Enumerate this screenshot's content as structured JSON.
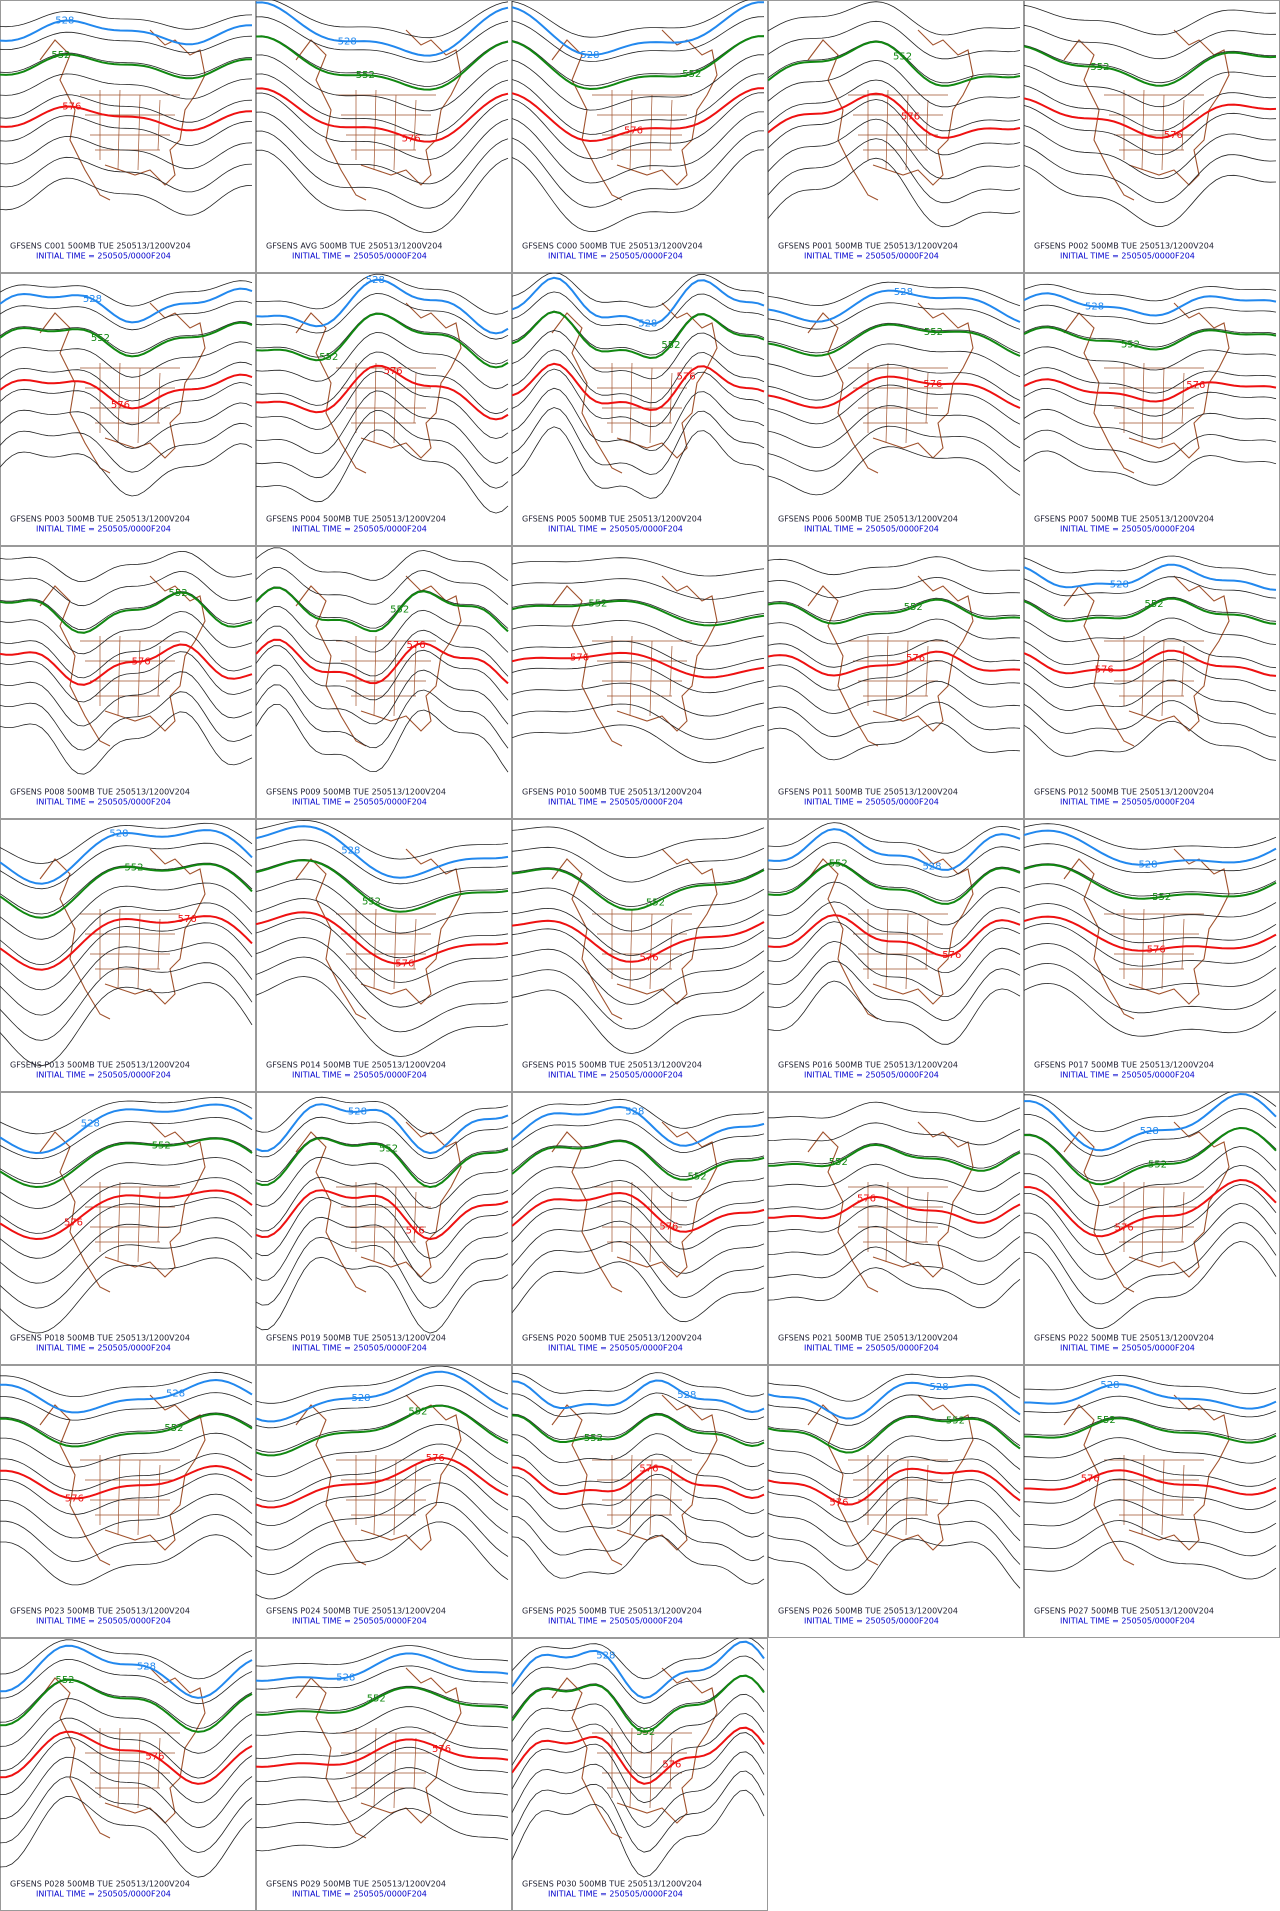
{
  "panels": [
    {
      "title": "GFSENS C001 500MB TUE 250513/1200V204",
      "init": "INITIAL TIME = 250505/0000F204",
      "labels": [
        {
          "text": "528",
          "color": "#2288ee"
        },
        {
          "text": "552",
          "color": "#118811"
        },
        {
          "text": "576",
          "color": "#ee1111"
        }
      ]
    },
    {
      "title": "GFSENS AVG 500MB TUE 250513/1200V204",
      "init": "INITIAL TIME = 250505/0000F204",
      "labels": [
        {
          "text": "528",
          "color": "#2288ee"
        },
        {
          "text": "552",
          "color": "#118811"
        },
        {
          "text": "576",
          "color": "#ee1111"
        }
      ]
    },
    {
      "title": "GFSENS C000 500MB TUE 250513/1200V204",
      "init": "INITIAL TIME = 250505/0000F204",
      "labels": [
        {
          "text": "528",
          "color": "#2288ee"
        },
        {
          "text": "552",
          "color": "#118811"
        },
        {
          "text": "576",
          "color": "#ee1111"
        }
      ]
    },
    {
      "title": "GFSENS P001 500MB TUE 250513/1200V204",
      "init": "INITIAL TIME = 250505/0000F204",
      "labels": [
        {
          "text": "552",
          "color": "#118811"
        },
        {
          "text": "576",
          "color": "#ee1111"
        }
      ]
    },
    {
      "title": "GFSENS P002 500MB TUE 250513/1200V204",
      "init": "INITIAL TIME = 250505/0000F204",
      "labels": [
        {
          "text": "552",
          "color": "#118811"
        },
        {
          "text": "576",
          "color": "#ee1111"
        }
      ]
    },
    {
      "title": "GFSENS P003 500MB TUE 250513/1200V204",
      "init": "INITIAL TIME = 250505/0000F204",
      "labels": [
        {
          "text": "528",
          "color": "#2288ee"
        },
        {
          "text": "552",
          "color": "#118811"
        },
        {
          "text": "576",
          "color": "#ee1111"
        }
      ]
    },
    {
      "title": "GFSENS P004 500MB TUE 250513/1200V204",
      "init": "INITIAL TIME = 250505/0000F204",
      "labels": [
        {
          "text": "528",
          "color": "#2288ee"
        },
        {
          "text": "552",
          "color": "#118811"
        },
        {
          "text": "576",
          "color": "#ee1111"
        }
      ]
    },
    {
      "title": "GFSENS P005 500MB TUE 250513/1200V204",
      "init": "INITIAL TIME = 250505/0000F204",
      "labels": [
        {
          "text": "528",
          "color": "#2288ee"
        },
        {
          "text": "552",
          "color": "#118811"
        },
        {
          "text": "576",
          "color": "#ee1111"
        }
      ]
    },
    {
      "title": "GFSENS P006 500MB TUE 250513/1200V204",
      "init": "INITIAL TIME = 250505/0000F204",
      "labels": [
        {
          "text": "528",
          "color": "#2288ee"
        },
        {
          "text": "552",
          "color": "#118811"
        },
        {
          "text": "576",
          "color": "#ee1111"
        }
      ]
    },
    {
      "title": "GFSENS P007 500MB TUE 250513/1200V204",
      "init": "INITIAL TIME = 250505/0000F204",
      "labels": [
        {
          "text": "528",
          "color": "#2288ee"
        },
        {
          "text": "552",
          "color": "#118811"
        },
        {
          "text": "576",
          "color": "#ee1111"
        }
      ]
    },
    {
      "title": "GFSENS P008 500MB TUE 250513/1200V204",
      "init": "INITIAL TIME = 250505/0000F204",
      "labels": [
        {
          "text": "552",
          "color": "#118811"
        },
        {
          "text": "576",
          "color": "#ee1111"
        }
      ]
    },
    {
      "title": "GFSENS P009 500MB TUE 250513/1200V204",
      "init": "INITIAL TIME = 250505/0000F204",
      "labels": [
        {
          "text": "552",
          "color": "#118811"
        },
        {
          "text": "576",
          "color": "#ee1111"
        }
      ]
    },
    {
      "title": "GFSENS P010 500MB TUE 250513/1200V204",
      "init": "INITIAL TIME = 250505/0000F204",
      "labels": [
        {
          "text": "552",
          "color": "#118811"
        },
        {
          "text": "576",
          "color": "#ee1111"
        }
      ]
    },
    {
      "title": "GFSENS P011 500MB TUE 250513/1200V204",
      "init": "INITIAL TIME = 250505/0000F204",
      "labels": [
        {
          "text": "552",
          "color": "#118811"
        },
        {
          "text": "576",
          "color": "#ee1111"
        }
      ]
    },
    {
      "title": "GFSENS P012 500MB TUE 250513/1200V204",
      "init": "INITIAL TIME = 250505/0000F204",
      "labels": [
        {
          "text": "528",
          "color": "#2288ee"
        },
        {
          "text": "552",
          "color": "#118811"
        },
        {
          "text": "576",
          "color": "#ee1111"
        }
      ]
    },
    {
      "title": "GFSENS P013 500MB TUE 250513/1200V204",
      "init": "INITIAL TIME = 250505/0000F204",
      "labels": [
        {
          "text": "528",
          "color": "#2288ee"
        },
        {
          "text": "552",
          "color": "#118811"
        },
        {
          "text": "576",
          "color": "#ee1111"
        }
      ]
    },
    {
      "title": "GFSENS P014 500MB TUE 250513/1200V204",
      "init": "INITIAL TIME = 250505/0000F204",
      "labels": [
        {
          "text": "528",
          "color": "#2288ee"
        },
        {
          "text": "552",
          "color": "#118811"
        },
        {
          "text": "576",
          "color": "#ee1111"
        }
      ]
    },
    {
      "title": "GFSENS P015 500MB TUE 250513/1200V204",
      "init": "INITIAL TIME = 250505/0000F204",
      "labels": [
        {
          "text": "552",
          "color": "#118811"
        },
        {
          "text": "576",
          "color": "#ee1111"
        }
      ]
    },
    {
      "title": "GFSENS P016 500MB TUE 250513/1200V204",
      "init": "INITIAL TIME = 250505/0000F204",
      "labels": [
        {
          "text": "528",
          "color": "#2288ee"
        },
        {
          "text": "552",
          "color": "#118811"
        },
        {
          "text": "576",
          "color": "#ee1111"
        }
      ]
    },
    {
      "title": "GFSENS P017 500MB TUE 250513/1200V204",
      "init": "INITIAL TIME = 250505/0000F204",
      "labels": [
        {
          "text": "528",
          "color": "#2288ee"
        },
        {
          "text": "552",
          "color": "#118811"
        },
        {
          "text": "576",
          "color": "#ee1111"
        }
      ]
    },
    {
      "title": "GFSENS P018 500MB TUE 250513/1200V204",
      "init": "INITIAL TIME = 250505/0000F204",
      "labels": [
        {
          "text": "528",
          "color": "#2288ee"
        },
        {
          "text": "552",
          "color": "#118811"
        },
        {
          "text": "576",
          "color": "#ee1111"
        }
      ]
    },
    {
      "title": "GFSENS P019 500MB TUE 250513/1200V204",
      "init": "INITIAL TIME = 250505/0000F204",
      "labels": [
        {
          "text": "528",
          "color": "#2288ee"
        },
        {
          "text": "552",
          "color": "#118811"
        },
        {
          "text": "576",
          "color": "#ee1111"
        }
      ]
    },
    {
      "title": "GFSENS P020 500MB TUE 250513/1200V204",
      "init": "INITIAL TIME = 250505/0000F204",
      "labels": [
        {
          "text": "528",
          "color": "#2288ee"
        },
        {
          "text": "552",
          "color": "#118811"
        },
        {
          "text": "576",
          "color": "#ee1111"
        }
      ]
    },
    {
      "title": "GFSENS P021 500MB TUE 250513/1200V204",
      "init": "INITIAL TIME = 250505/0000F204",
      "labels": [
        {
          "text": "552",
          "color": "#118811"
        },
        {
          "text": "576",
          "color": "#ee1111"
        }
      ]
    },
    {
      "title": "GFSENS P022 500MB TUE 250513/1200V204",
      "init": "INITIAL TIME = 250505/0000F204",
      "labels": [
        {
          "text": "528",
          "color": "#2288ee"
        },
        {
          "text": "552",
          "color": "#118811"
        },
        {
          "text": "576",
          "color": "#ee1111"
        }
      ]
    },
    {
      "title": "GFSENS P023 500MB TUE 250513/1200V204",
      "init": "INITIAL TIME = 250505/0000F204",
      "labels": [
        {
          "text": "528",
          "color": "#2288ee"
        },
        {
          "text": "552",
          "color": "#118811"
        },
        {
          "text": "576",
          "color": "#ee1111"
        }
      ]
    },
    {
      "title": "GFSENS P024 500MB TUE 250513/1200V204",
      "init": "INITIAL TIME = 250505/0000F204",
      "labels": [
        {
          "text": "528",
          "color": "#2288ee"
        },
        {
          "text": "552",
          "color": "#118811"
        },
        {
          "text": "576",
          "color": "#ee1111"
        }
      ]
    },
    {
      "title": "GFSENS P025 500MB TUE 250513/1200V204",
      "init": "INITIAL TIME = 250505/0000F204",
      "labels": [
        {
          "text": "528",
          "color": "#2288ee"
        },
        {
          "text": "552",
          "color": "#118811"
        },
        {
          "text": "576",
          "color": "#ee1111"
        }
      ]
    },
    {
      "title": "GFSENS P026 500MB TUE 250513/1200V204",
      "init": "INITIAL TIME = 250505/0000F204",
      "labels": [
        {
          "text": "528",
          "color": "#2288ee"
        },
        {
          "text": "552",
          "color": "#118811"
        },
        {
          "text": "576",
          "color": "#ee1111"
        }
      ]
    },
    {
      "title": "GFSENS P027 500MB TUE 250513/1200V204",
      "init": "INITIAL TIME = 250505/0000F204",
      "labels": [
        {
          "text": "528",
          "color": "#2288ee"
        },
        {
          "text": "552",
          "color": "#118811"
        },
        {
          "text": "576",
          "color": "#ee1111"
        }
      ]
    },
    {
      "title": "GFSENS P028 500MB TUE 250513/1200V204",
      "init": "INITIAL TIME = 250505/0000F204",
      "labels": [
        {
          "text": "528",
          "color": "#2288ee"
        },
        {
          "text": "552",
          "color": "#118811"
        },
        {
          "text": "576",
          "color": "#ee1111"
        }
      ]
    },
    {
      "title": "GFSENS P029 500MB TUE 250513/1200V204",
      "init": "INITIAL TIME = 250505/0000F204",
      "labels": [
        {
          "text": "528",
          "color": "#2288ee"
        },
        {
          "text": "552",
          "color": "#118811"
        },
        {
          "text": "576",
          "color": "#ee1111"
        }
      ]
    },
    {
      "title": "GFSENS P030 500MB TUE 250513/1200V204",
      "init": "INITIAL TIME = 250505/0000F204",
      "labels": [
        {
          "text": "528",
          "color": "#2288ee"
        },
        {
          "text": "552",
          "color": "#118811"
        },
        {
          "text": "576",
          "color": "#ee1111"
        }
      ]
    }
  ]
}
